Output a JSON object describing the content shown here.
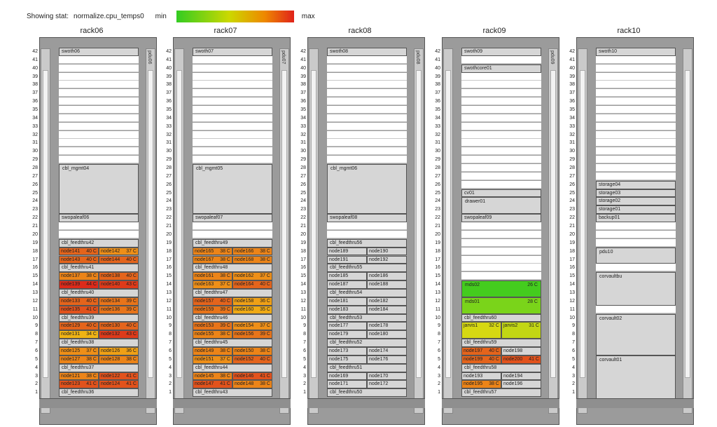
{
  "header": {
    "showing_label": "Showing stat:",
    "stat_name": "normalize.cpu_temps0",
    "min_label": "min",
    "max_label": "max"
  },
  "colors": {
    "temp_low": "#33cc22",
    "temp_mid": "#ccd800",
    "temp_high": "#e0221a",
    "unmonitored": "#d6d6d6",
    "frame": "#9b9b9b"
  },
  "racks": [
    {
      "name": "rack06",
      "column_label": "pdu06",
      "devices": [
        {
          "u": 42,
          "h": 1,
          "label": "swoth06"
        },
        {
          "u": 28,
          "h": 6,
          "label": "cbl_mgmt04"
        },
        {
          "u": 22,
          "h": 1,
          "label": "swopaleaf06"
        },
        {
          "u": 19,
          "h": 1,
          "label": "cbl_feedthru42"
        },
        {
          "u": 18,
          "h": 1,
          "nodes": [
            {
              "name": "node141",
              "temp": "40 C",
              "color": "#e4641c"
            },
            {
              "name": "node142",
              "temp": "37 C",
              "color": "#ee8f18"
            }
          ]
        },
        {
          "u": 17,
          "h": 1,
          "nodes": [
            {
              "name": "node143",
              "temp": "40 C",
              "color": "#e4641c"
            },
            {
              "name": "node144",
              "temp": "40 C",
              "color": "#e4641c"
            }
          ]
        },
        {
          "u": 16,
          "h": 1,
          "label": "cbl_feedthru41"
        },
        {
          "u": 15,
          "h": 1,
          "nodes": [
            {
              "name": "node137",
              "temp": "38 C",
              "color": "#ec8418"
            },
            {
              "name": "node138",
              "temp": "40 C",
              "color": "#e4641c"
            }
          ]
        },
        {
          "u": 14,
          "h": 1,
          "nodes": [
            {
              "name": "node139",
              "temp": "44 C",
              "color": "#dc2a1a"
            },
            {
              "name": "node140",
              "temp": "43 C",
              "color": "#de3a1a"
            }
          ]
        },
        {
          "u": 13,
          "h": 1,
          "label": "cbl_feedthru40"
        },
        {
          "u": 12,
          "h": 1,
          "nodes": [
            {
              "name": "node133",
              "temp": "40 C",
              "color": "#e4641c"
            },
            {
              "name": "node134",
              "temp": "39 C",
              "color": "#e8741a"
            }
          ]
        },
        {
          "u": 11,
          "h": 1,
          "nodes": [
            {
              "name": "node135",
              "temp": "41 C",
              "color": "#e2521c"
            },
            {
              "name": "node136",
              "temp": "39 C",
              "color": "#e8741a"
            }
          ]
        },
        {
          "u": 10,
          "h": 1,
          "label": "cbl_feedthru39"
        },
        {
          "u": 9,
          "h": 1,
          "nodes": [
            {
              "name": "node129",
              "temp": "40 C",
              "color": "#e4641c"
            },
            {
              "name": "node130",
              "temp": "40 C",
              "color": "#e4641c"
            }
          ]
        },
        {
          "u": 8,
          "h": 1,
          "nodes": [
            {
              "name": "node131",
              "temp": "34 C",
              "color": "#f0b414"
            },
            {
              "name": "node132",
              "temp": "43 C",
              "color": "#de3a1a"
            }
          ]
        },
        {
          "u": 7,
          "h": 1,
          "label": "cbl_feedthru38"
        },
        {
          "u": 6,
          "h": 1,
          "nodes": [
            {
              "name": "node125",
              "temp": "37 C",
              "color": "#ee8f18"
            },
            {
              "name": "node126",
              "temp": "36 C",
              "color": "#efa016"
            }
          ]
        },
        {
          "u": 5,
          "h": 1,
          "nodes": [
            {
              "name": "node127",
              "temp": "38 C",
              "color": "#ec8418"
            },
            {
              "name": "node128",
              "temp": "38 C",
              "color": "#ec8418"
            }
          ]
        },
        {
          "u": 4,
          "h": 1,
          "label": "cbl_feedthru37"
        },
        {
          "u": 3,
          "h": 1,
          "nodes": [
            {
              "name": "node121",
              "temp": "38 C",
              "color": "#ec8418"
            },
            {
              "name": "node122",
              "temp": "41 C",
              "color": "#e2521c"
            }
          ]
        },
        {
          "u": 2,
          "h": 1,
          "nodes": [
            {
              "name": "node123",
              "temp": "41 C",
              "color": "#e2521c"
            },
            {
              "name": "node124",
              "temp": "41 C",
              "color": "#e2521c"
            }
          ]
        },
        {
          "u": 1,
          "h": 1,
          "label": "cbl_feedthru36"
        }
      ]
    },
    {
      "name": "rack07",
      "column_label": "pdu07",
      "devices": [
        {
          "u": 42,
          "h": 1,
          "label": "swoth07"
        },
        {
          "u": 28,
          "h": 6,
          "label": "cbl_mgmt05"
        },
        {
          "u": 22,
          "h": 1,
          "label": "swopaleaf07"
        },
        {
          "u": 19,
          "h": 1,
          "label": "cbl_feedthru49"
        },
        {
          "u": 18,
          "h": 1,
          "nodes": [
            {
              "name": "node165",
              "temp": "38 C",
              "color": "#ec8418"
            },
            {
              "name": "node166",
              "temp": "38 C",
              "color": "#ec8418"
            }
          ]
        },
        {
          "u": 17,
          "h": 1,
          "nodes": [
            {
              "name": "node167",
              "temp": "38 C",
              "color": "#ec8418"
            },
            {
              "name": "node168",
              "temp": "38 C",
              "color": "#ec8418"
            }
          ]
        },
        {
          "u": 16,
          "h": 1,
          "label": "cbl_feedthru48"
        },
        {
          "u": 15,
          "h": 1,
          "nodes": [
            {
              "name": "node161",
              "temp": "38 C",
              "color": "#ec8418"
            },
            {
              "name": "node162",
              "temp": "37 C",
              "color": "#ee8f18"
            }
          ]
        },
        {
          "u": 14,
          "h": 1,
          "nodes": [
            {
              "name": "node163",
              "temp": "37 C",
              "color": "#ee8f18"
            },
            {
              "name": "node164",
              "temp": "40 C",
              "color": "#e4641c"
            }
          ]
        },
        {
          "u": 13,
          "h": 1,
          "label": "cbl_feedthru47"
        },
        {
          "u": 12,
          "h": 1,
          "nodes": [
            {
              "name": "node157",
              "temp": "40 C",
              "color": "#e4641c"
            },
            {
              "name": "node158",
              "temp": "36 C",
              "color": "#efa016"
            }
          ]
        },
        {
          "u": 11,
          "h": 1,
          "nodes": [
            {
              "name": "node159",
              "temp": "39 C",
              "color": "#e8741a"
            },
            {
              "name": "node160",
              "temp": "35 C",
              "color": "#f0aa14"
            }
          ]
        },
        {
          "u": 10,
          "h": 1,
          "label": "cbl_feedthru46"
        },
        {
          "u": 9,
          "h": 1,
          "nodes": [
            {
              "name": "node153",
              "temp": "39 C",
              "color": "#e8741a"
            },
            {
              "name": "node154",
              "temp": "37 C",
              "color": "#ee8f18"
            }
          ]
        },
        {
          "u": 8,
          "h": 1,
          "nodes": [
            {
              "name": "node155",
              "temp": "38 C",
              "color": "#ec8418"
            },
            {
              "name": "node156",
              "temp": "39 C",
              "color": "#e8741a"
            }
          ]
        },
        {
          "u": 7,
          "h": 1,
          "label": "cbl_feedthru45"
        },
        {
          "u": 6,
          "h": 1,
          "nodes": [
            {
              "name": "node149",
              "temp": "38 C",
              "color": "#ec8418"
            },
            {
              "name": "node150",
              "temp": "38 C",
              "color": "#ec8418"
            }
          ]
        },
        {
          "u": 5,
          "h": 1,
          "nodes": [
            {
              "name": "node151",
              "temp": "37 C",
              "color": "#ee8f18"
            },
            {
              "name": "node152",
              "temp": "40 C",
              "color": "#e4641c"
            }
          ]
        },
        {
          "u": 4,
          "h": 1,
          "label": "cbl_feedthru44"
        },
        {
          "u": 3,
          "h": 1,
          "nodes": [
            {
              "name": "node145",
              "temp": "38 C",
              "color": "#ec8418"
            },
            {
              "name": "node146",
              "temp": "41 C",
              "color": "#e2521c"
            }
          ]
        },
        {
          "u": 2,
          "h": 1,
          "nodes": [
            {
              "name": "node147",
              "temp": "41 C",
              "color": "#e2521c"
            },
            {
              "name": "node148",
              "temp": "38 C",
              "color": "#ec8418"
            }
          ]
        },
        {
          "u": 1,
          "h": 1,
          "label": "cbl_feedthru43"
        }
      ]
    },
    {
      "name": "rack08",
      "column_label": "pdu08",
      "devices": [
        {
          "u": 42,
          "h": 1,
          "label": "swoth08"
        },
        {
          "u": 28,
          "h": 6,
          "label": "cbl_mgmt06"
        },
        {
          "u": 22,
          "h": 1,
          "label": "swopaleaf08"
        },
        {
          "u": 19,
          "h": 1,
          "label": "cbl_feedthru56"
        },
        {
          "u": 18,
          "h": 1,
          "nodes": [
            {
              "name": "node189",
              "temp": "",
              "color": "#d6d6d6"
            },
            {
              "name": "node190",
              "temp": "",
              "color": "#d6d6d6"
            }
          ]
        },
        {
          "u": 17,
          "h": 1,
          "nodes": [
            {
              "name": "node191",
              "temp": "",
              "color": "#d6d6d6"
            },
            {
              "name": "node192",
              "temp": "",
              "color": "#d6d6d6"
            }
          ]
        },
        {
          "u": 16,
          "h": 1,
          "label": "cbl_feedthru55"
        },
        {
          "u": 15,
          "h": 1,
          "nodes": [
            {
              "name": "node185",
              "temp": "",
              "color": "#d6d6d6"
            },
            {
              "name": "node186",
              "temp": "",
              "color": "#d6d6d6"
            }
          ]
        },
        {
          "u": 14,
          "h": 1,
          "nodes": [
            {
              "name": "node187",
              "temp": "",
              "color": "#d6d6d6"
            },
            {
              "name": "node188",
              "temp": "",
              "color": "#d6d6d6"
            }
          ]
        },
        {
          "u": 13,
          "h": 1,
          "label": "cbl_feedthru54"
        },
        {
          "u": 12,
          "h": 1,
          "nodes": [
            {
              "name": "node181",
              "temp": "",
              "color": "#d6d6d6"
            },
            {
              "name": "node182",
              "temp": "",
              "color": "#d6d6d6"
            }
          ]
        },
        {
          "u": 11,
          "h": 1,
          "nodes": [
            {
              "name": "node183",
              "temp": "",
              "color": "#d6d6d6"
            },
            {
              "name": "node184",
              "temp": "",
              "color": "#d6d6d6"
            }
          ]
        },
        {
          "u": 10,
          "h": 1,
          "label": "cbl_feedthru53"
        },
        {
          "u": 9,
          "h": 1,
          "nodes": [
            {
              "name": "node177",
              "temp": "",
              "color": "#d6d6d6"
            },
            {
              "name": "node178",
              "temp": "",
              "color": "#d6d6d6"
            }
          ]
        },
        {
          "u": 8,
          "h": 1,
          "nodes": [
            {
              "name": "node179",
              "temp": "",
              "color": "#d6d6d6"
            },
            {
              "name": "node180",
              "temp": "",
              "color": "#d6d6d6"
            }
          ]
        },
        {
          "u": 7,
          "h": 1,
          "label": "cbl_feedthru52"
        },
        {
          "u": 6,
          "h": 1,
          "nodes": [
            {
              "name": "node173",
              "temp": "",
              "color": "#d6d6d6"
            },
            {
              "name": "node174",
              "temp": "",
              "color": "#d6d6d6"
            }
          ]
        },
        {
          "u": 5,
          "h": 1,
          "nodes": [
            {
              "name": "node175",
              "temp": "",
              "color": "#d6d6d6"
            },
            {
              "name": "node176",
              "temp": "",
              "color": "#d6d6d6"
            }
          ]
        },
        {
          "u": 4,
          "h": 1,
          "label": "cbl_feedthru51"
        },
        {
          "u": 3,
          "h": 1,
          "nodes": [
            {
              "name": "node169",
              "temp": "",
              "color": "#d6d6d6"
            },
            {
              "name": "node170",
              "temp": "",
              "color": "#d6d6d6"
            }
          ]
        },
        {
          "u": 2,
          "h": 1,
          "nodes": [
            {
              "name": "node171",
              "temp": "",
              "color": "#d6d6d6"
            },
            {
              "name": "node172",
              "temp": "",
              "color": "#d6d6d6"
            }
          ]
        },
        {
          "u": 1,
          "h": 1,
          "label": "cbl_feedthru50"
        }
      ]
    },
    {
      "name": "rack09",
      "column_label": "pdu09",
      "devices": [
        {
          "u": 42,
          "h": 1,
          "label": "swoth09"
        },
        {
          "u": 40,
          "h": 1,
          "label": "swothcore01"
        },
        {
          "u": 25,
          "h": 1,
          "label": "cv01"
        },
        {
          "u": 24,
          "h": 2,
          "label": "drawer01"
        },
        {
          "u": 22,
          "h": 1,
          "label": "swopaleaf09"
        },
        {
          "u": 14,
          "h": 2,
          "label": "mds02",
          "temp": "26 C",
          "color": "#44cc1e"
        },
        {
          "u": 12,
          "h": 2,
          "label": "mds01",
          "temp": "28 C",
          "color": "#7ad41a"
        },
        {
          "u": 10,
          "h": 1,
          "label": "cbl_feedthru60"
        },
        {
          "u": 9,
          "h": 2,
          "nodes": [
            {
              "name": "jarvis1",
              "temp": "32 C",
              "color": "#d6d812"
            },
            {
              "name": "jarvis2",
              "temp": "31 C",
              "color": "#c2d614"
            }
          ]
        },
        {
          "u": 7,
          "h": 1,
          "label": "cbl_feedthru59"
        },
        {
          "u": 6,
          "h": 1,
          "nodes": [
            {
              "name": "node197",
              "temp": "40 C",
              "color": "#e4641c"
            },
            {
              "name": "node198",
              "temp": "",
              "color": "#d6d6d6"
            }
          ]
        },
        {
          "u": 5,
          "h": 1,
          "nodes": [
            {
              "name": "node199",
              "temp": "40 C",
              "color": "#e4641c"
            },
            {
              "name": "node200",
              "temp": "41 C",
              "color": "#e2521c"
            }
          ]
        },
        {
          "u": 4,
          "h": 1,
          "label": "cbl_feedthru58"
        },
        {
          "u": 3,
          "h": 1,
          "nodes": [
            {
              "name": "node193",
              "temp": "",
              "color": "#d6d6d6"
            },
            {
              "name": "node194",
              "temp": "",
              "color": "#d6d6d6"
            }
          ]
        },
        {
          "u": 2,
          "h": 1,
          "nodes": [
            {
              "name": "node195",
              "temp": "38 C",
              "color": "#ec8418"
            },
            {
              "name": "node196",
              "temp": "",
              "color": "#d6d6d6"
            }
          ]
        },
        {
          "u": 1,
          "h": 1,
          "label": "cbl_feedthru57"
        }
      ]
    },
    {
      "name": "rack10",
      "column_label": "",
      "devices": [
        {
          "u": 42,
          "h": 1,
          "label": "swoth10"
        },
        {
          "u": 26,
          "h": 1,
          "label": "storage04"
        },
        {
          "u": 25,
          "h": 1,
          "label": "storage03"
        },
        {
          "u": 24,
          "h": 1,
          "label": "storage02"
        },
        {
          "u": 23,
          "h": 1,
          "label": "storage01"
        },
        {
          "u": 22,
          "h": 1,
          "label": "backup01"
        },
        {
          "u": 18,
          "h": 2,
          "label": "pdu10"
        },
        {
          "u": 15,
          "h": 4,
          "label": "corvaultbu"
        },
        {
          "u": 10,
          "h": 5,
          "label": "corvault02"
        },
        {
          "u": 5,
          "h": 6,
          "label": "corvault01"
        }
      ]
    }
  ]
}
